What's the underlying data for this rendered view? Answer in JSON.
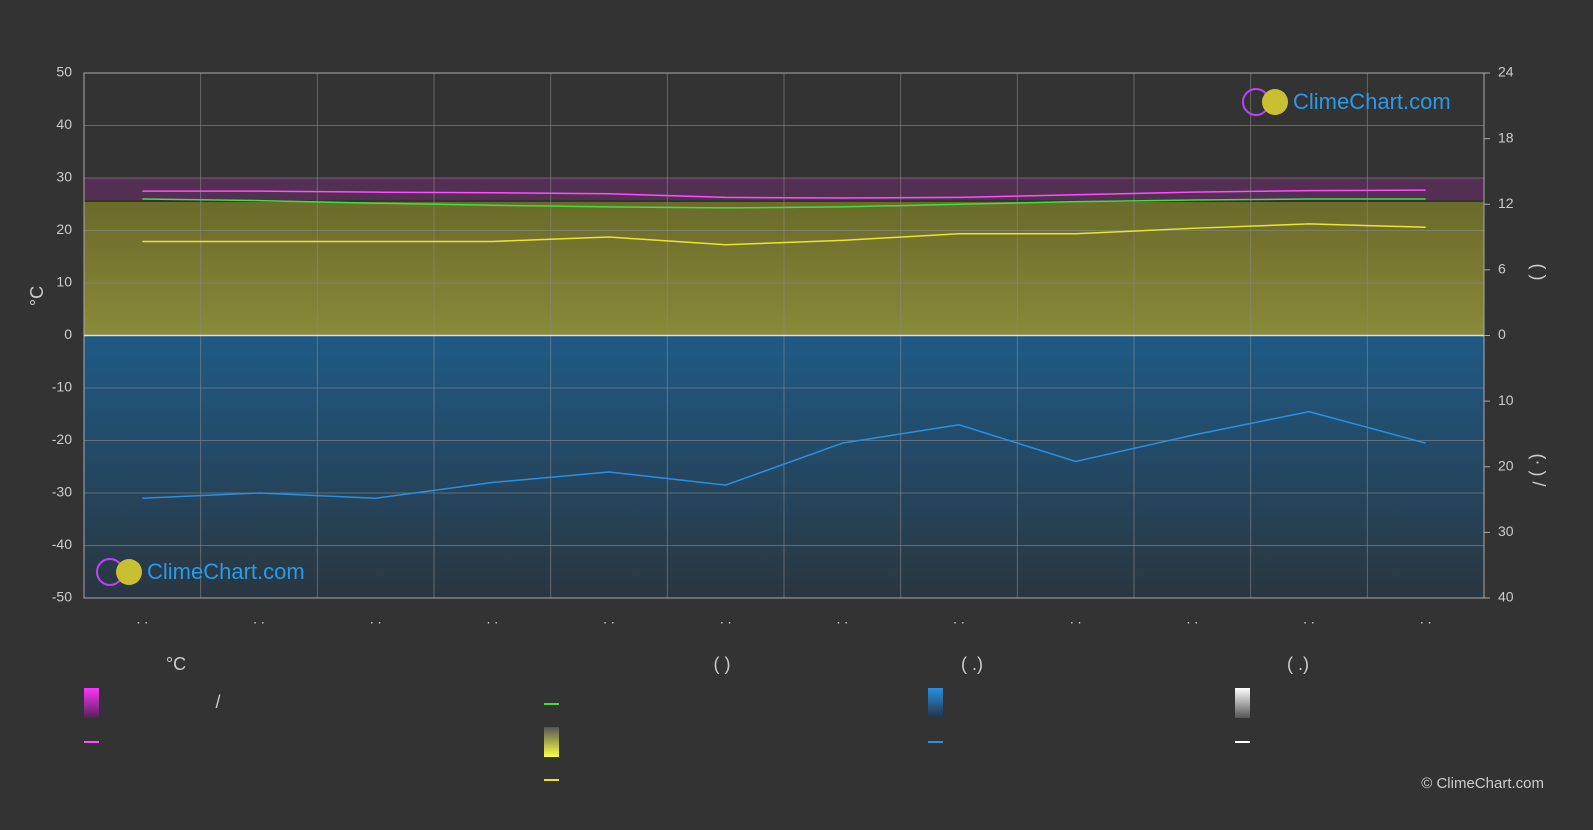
{
  "chart_data": {
    "type": "line",
    "y_label": "°C",
    "y2_label": "(          )",
    "y3_label": "(·   )   /",
    "categories": [
      ". .",
      ". .",
      ". .",
      ". .",
      ". .",
      ". .",
      ". .",
      ". .",
      ". .",
      ". .",
      ". .",
      ". ."
    ],
    "ylim": [
      -50,
      50
    ],
    "yticks": [
      -50,
      -40,
      -30,
      -20,
      -10,
      0,
      10,
      20,
      30,
      40,
      50
    ],
    "y2lim": [
      0,
      24
    ],
    "y2ticks": [
      0,
      6,
      12,
      18,
      24
    ],
    "y3lim": [
      0,
      40
    ],
    "y3ticks": [
      10,
      20,
      30,
      40
    ],
    "grid": true,
    "series": [
      {
        "color": "#ff4dff",
        "values": [
          27.5,
          27.5,
          27.3,
          27.2,
          27.0,
          26.3,
          26.2,
          26.3,
          26.8,
          27.3,
          27.6,
          27.7
        ]
      },
      {
        "color": "#44dd44",
        "values": [
          26.0,
          25.7,
          25.2,
          24.8,
          24.5,
          24.3,
          24.5,
          25.0,
          25.5,
          25.8,
          26.0,
          26.0
        ]
      },
      {
        "color": "#e6e633",
        "axis": "y2",
        "values": [
          8.6,
          8.6,
          8.6,
          8.6,
          9.0,
          8.3,
          8.7,
          9.3,
          9.3,
          9.8,
          10.2,
          9.9
        ]
      },
      {
        "color": "#2a8fe0",
        "axis": "y3",
        "values": [
          24.8,
          24.0,
          24.8,
          22.4,
          20.8,
          22.8,
          16.4,
          13.6,
          19.2,
          15.2,
          11.6,
          16.4
        ]
      }
    ]
  },
  "legend": {
    "headers": [
      "°C",
      "(          )",
      "(   .)",
      "(   .)"
    ],
    "texts": [
      "/"
    ]
  },
  "watermark": "ClimeChart.com",
  "copyright": "© ClimeChart.com"
}
